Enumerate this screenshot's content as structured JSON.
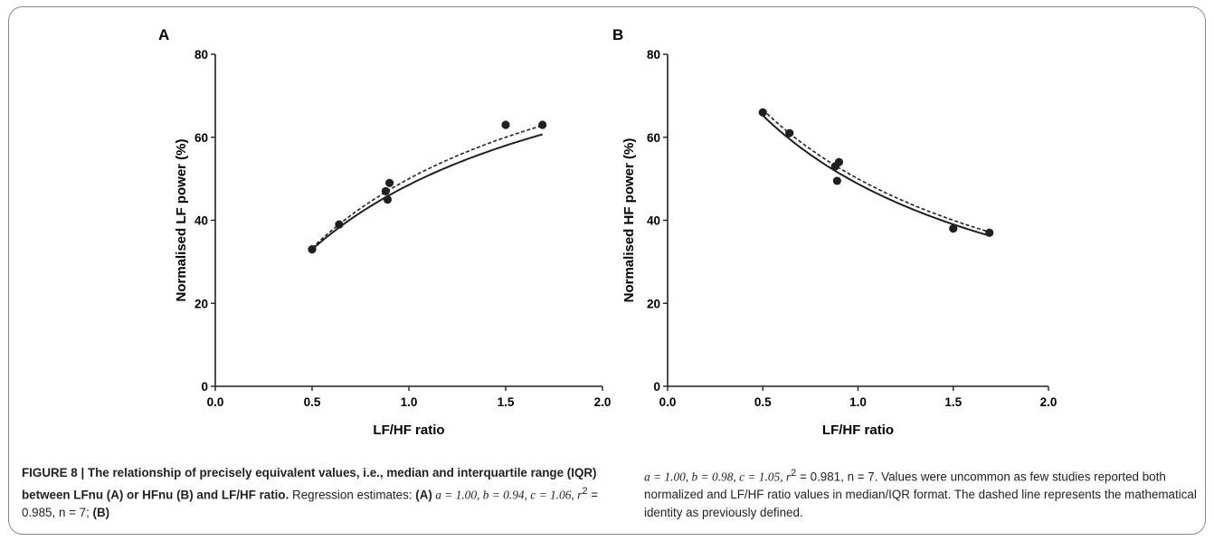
{
  "chart_data": [
    {
      "type": "scatter",
      "panel_label": "A",
      "ylabel": "Normalised LF power (%)",
      "xlabel": "LF/HF ratio",
      "xlim": [
        0,
        2.0
      ],
      "ylim": [
        0,
        80
      ],
      "xticks": [
        "0.0",
        "0.5",
        "1.0",
        "1.5",
        "2.0"
      ],
      "yticks": [
        "0",
        "20",
        "40",
        "60",
        "80"
      ],
      "points": [
        {
          "x": 0.5,
          "y": 33
        },
        {
          "x": 0.64,
          "y": 39
        },
        {
          "x": 0.88,
          "y": 47
        },
        {
          "x": 0.89,
          "y": 45
        },
        {
          "x": 0.9,
          "y": 49
        },
        {
          "x": 1.5,
          "y": 63
        },
        {
          "x": 1.69,
          "y": 63
        }
      ],
      "fit": {
        "a": 1.0,
        "b": 0.94,
        "c": 1.06,
        "x_range": [
          0.5,
          1.69
        ]
      },
      "curve_form": "lf",
      "grid": false
    },
    {
      "type": "scatter",
      "panel_label": "B",
      "ylabel": "Normalised HF power (%)",
      "xlabel": "LF/HF ratio",
      "xlim": [
        0,
        2.0
      ],
      "ylim": [
        0,
        80
      ],
      "xticks": [
        "0.0",
        "0.5",
        "1.0",
        "1.5",
        "2.0"
      ],
      "yticks": [
        "0",
        "20",
        "40",
        "60",
        "80"
      ],
      "points": [
        {
          "x": 0.5,
          "y": 66
        },
        {
          "x": 0.64,
          "y": 61
        },
        {
          "x": 0.88,
          "y": 53
        },
        {
          "x": 0.89,
          "y": 49.5
        },
        {
          "x": 0.9,
          "y": 54
        },
        {
          "x": 1.5,
          "y": 38
        },
        {
          "x": 1.69,
          "y": 37
        }
      ],
      "fit": {
        "a": 1.0,
        "b": 0.98,
        "c": 1.05,
        "x_range": [
          0.5,
          1.69
        ]
      },
      "curve_form": "hf",
      "grid": false
    }
  ],
  "caption": {
    "figure_label": "FIGURE 8 | The relationship of precisely equivalent values, i.e., median and interquartile range (IQR) between LFnu (A) or HFnu (B) and LF/HF ratio.",
    "regression_intro": "Regression estimates: ",
    "a_label": "(A)",
    "a_stats": " a = 1.00, b = 0.94, c = 1.06, r",
    "a_tail": " = 0.985, n = 7; ",
    "b_label": "(B)",
    "b_stats": "a = 1.00, b = 0.98, c = 1.05, r",
    "b_tail": " = 0.981, n = 7. Values were uncommon as few studies reported both normalized and LF/HF ratio values in median/IQR format. The dashed line represents the mathematical identity as previously defined.",
    "superscript": "2"
  }
}
